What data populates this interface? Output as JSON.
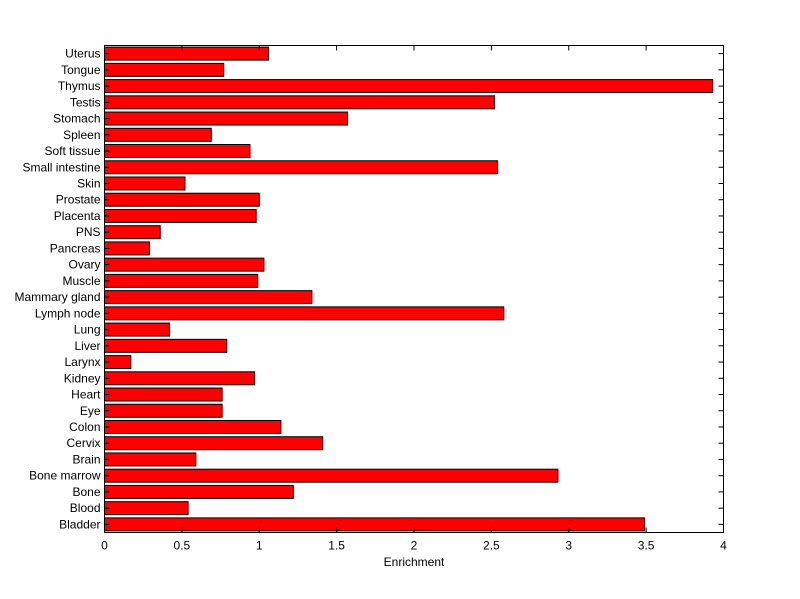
{
  "chart_data": {
    "type": "bar",
    "orientation": "horizontal",
    "title": "",
    "xlabel": "Enrichment",
    "ylabel": "",
    "xlim": [
      0,
      4
    ],
    "xticks": [
      0,
      0.5,
      1,
      1.5,
      2,
      2.5,
      3,
      3.5,
      4
    ],
    "xtick_labels": [
      "0",
      "0.5",
      "1",
      "1.5",
      "2",
      "2.5",
      "3",
      "3.5",
      "4"
    ],
    "grid": false,
    "legend": "none",
    "bar_color": "#ff0000",
    "bar_edge_color": "#000000",
    "categories": [
      "Bladder",
      "Blood",
      "Bone",
      "Bone marrow",
      "Brain",
      "Cervix",
      "Colon",
      "Eye",
      "Heart",
      "Kidney",
      "Larynx",
      "Liver",
      "Lung",
      "Lymph node",
      "Mammary gland",
      "Muscle",
      "Ovary",
      "Pancreas",
      "PNS",
      "Placenta",
      "Prostate",
      "Skin",
      "Small intestine",
      "Soft tissue",
      "Spleen",
      "Stomach",
      "Testis",
      "Thymus",
      "Tongue",
      "Uterus"
    ],
    "values": [
      3.49,
      0.54,
      1.22,
      2.93,
      0.59,
      1.41,
      1.14,
      0.76,
      0.76,
      0.97,
      0.17,
      0.79,
      0.42,
      2.58,
      1.34,
      0.99,
      1.03,
      0.29,
      0.36,
      0.98,
      1.0,
      0.52,
      2.54,
      0.94,
      0.69,
      1.57,
      2.52,
      3.93,
      0.77,
      1.06
    ]
  }
}
